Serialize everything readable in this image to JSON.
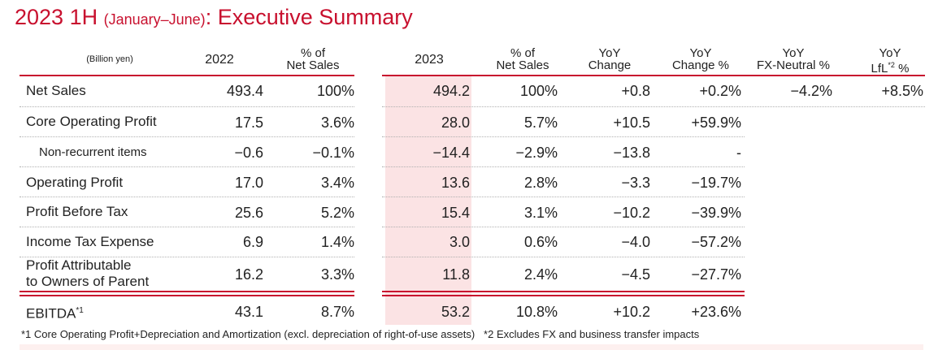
{
  "title": {
    "main": "2023 1H",
    "paren": "(January–June)",
    "rest": ": Executive Summary"
  },
  "colors": {
    "accent": "#c8102e",
    "highlight": "#fbe3e4"
  },
  "headers": {
    "unit": "(Billion yen)",
    "y2022": "2022",
    "pct2022_l1": "% of",
    "pct2022_l2": "Net Sales",
    "y2023": "2023",
    "pct2023_l1": "% of",
    "pct2023_l2": "Net Sales",
    "yoy_l1": "YoY",
    "yoy_l2": "Change",
    "yoypct_l1": "YoY",
    "yoypct_l2": "Change %",
    "fx_l1": "YoY",
    "fx_l2": "FX-Neutral %",
    "lfl_l1": "YoY",
    "lfl_l2a": "LfL",
    "lfl_sup": "*2",
    "lfl_l2b": " %"
  },
  "rows": [
    {
      "label": "Net Sales",
      "v2022": "493.4",
      "p2022": "100%",
      "v2023": "494.2",
      "p2023": "100%",
      "yoy": "+0.8",
      "yoypct": "+0.2%",
      "fx": "−4.2%",
      "lfl": "+8.5%"
    },
    {
      "label": "Core Operating Profit",
      "v2022": "17.5",
      "p2022": "3.6%",
      "v2023": "28.0",
      "p2023": "5.7%",
      "yoy": "+10.5",
      "yoypct": "+59.9%"
    },
    {
      "label": "Non-recurrent items",
      "v2022": "−0.6",
      "p2022": "−0.1%",
      "v2023": "−14.4",
      "p2023": "−2.9%",
      "yoy": "−13.8",
      "yoypct": "-"
    },
    {
      "label": "Operating Profit",
      "v2022": "17.0",
      "p2022": "3.4%",
      "v2023": "13.6",
      "p2023": "2.8%",
      "yoy": "−3.3",
      "yoypct": "−19.7%"
    },
    {
      "label": "Profit Before Tax",
      "v2022": "25.6",
      "p2022": "5.2%",
      "v2023": "15.4",
      "p2023": "3.1%",
      "yoy": "−10.2",
      "yoypct": "−39.9%"
    },
    {
      "label": "Income Tax Expense",
      "v2022": "6.9",
      "p2022": "1.4%",
      "v2023": "3.0",
      "p2023": "0.6%",
      "yoy": "−4.0",
      "yoypct": "−57.2%"
    },
    {
      "label_l1": "Profit Attributable",
      "label_l2": "to Owners of Parent",
      "v2022": "16.2",
      "p2022": "3.3%",
      "v2023": "11.8",
      "p2023": "2.4%",
      "yoy": "−4.5",
      "yoypct": "−27.7%"
    },
    {
      "label": "EBITDA",
      "label_sup": "*1",
      "v2022": "43.1",
      "p2022": "8.7%",
      "v2023": "53.2",
      "p2023": "10.8%",
      "yoy": "+10.2",
      "yoypct": "+23.6%"
    }
  ],
  "footnotes": {
    "note1": "*1 Core Operating Profit+Depreciation and Amortization (excl. depreciation of right-of-use assets)",
    "note2": "*2 Excludes FX and business transfer impacts"
  }
}
